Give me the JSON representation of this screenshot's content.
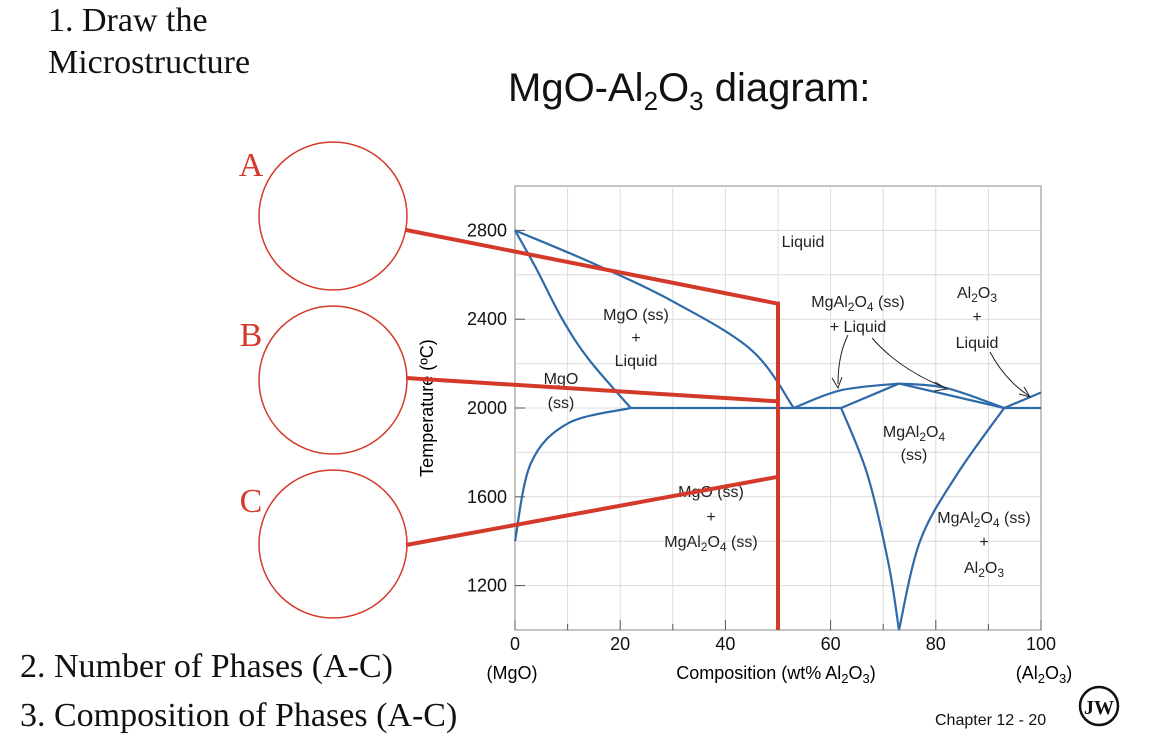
{
  "slide": {
    "heading_line1": "1. Draw the",
    "heading_line2": "Microstructure",
    "title_prefix": "MgO-Al",
    "title_sub1": "2",
    "title_mid": "O",
    "title_sub2": "3",
    "title_suffix": " diagram:",
    "question2": "2. Number of Phases (A-C)",
    "question3": "3. Composition of Phases (A-C)",
    "footer": "Chapter 12 - 20",
    "logo_text": "JW"
  },
  "circles": [
    {
      "label": "A"
    },
    {
      "label": "B"
    },
    {
      "label": "C"
    }
  ],
  "chart_data": {
    "type": "phase-diagram",
    "title": "MgO-Al2O3 diagram:",
    "xlabel": "Composition (wt% Al2O3)",
    "ylabel": "Temperature (ºC)",
    "xlim": [
      0,
      100
    ],
    "ylim": [
      1000,
      3000
    ],
    "x_ticks": [
      "0",
      "20",
      "40",
      "60",
      "80",
      "100"
    ],
    "y_ticks": [
      "1200",
      "1600",
      "2000",
      "2400",
      "2800"
    ],
    "x_end_labels": {
      "left": "(MgO)",
      "right": "(Al2O3)"
    },
    "grid": true,
    "regions": [
      {
        "label": "Liquid"
      },
      {
        "label": "MgO (ss) + Liquid"
      },
      {
        "label": "MgO (ss)"
      },
      {
        "label": "MgO (ss) + MgAl2O4 (ss)"
      },
      {
        "label": "MgAl2O4 (ss) + Liquid"
      },
      {
        "label": "MgAl2O4 (ss)"
      },
      {
        "label": "Al2O3 + Liquid"
      },
      {
        "label": "MgAl2O4 (ss) + Al2O3"
      }
    ],
    "composition_line_wt_pct": 50,
    "points": [
      {
        "label": "A",
        "temperature": 2470
      },
      {
        "label": "B",
        "temperature": 2030
      },
      {
        "label": "C",
        "temperature": 1690
      }
    ],
    "curves": [
      {
        "name": "liquidus-mgo",
        "points": [
          [
            0,
            2800
          ],
          [
            15,
            2650
          ],
          [
            30,
            2480
          ],
          [
            45,
            2260
          ],
          [
            53,
            2000
          ]
        ]
      },
      {
        "name": "solidus-mgo",
        "points": [
          [
            0,
            2800
          ],
          [
            4,
            2630
          ],
          [
            9,
            2400
          ],
          [
            14,
            2220
          ],
          [
            22,
            2000
          ]
        ]
      },
      {
        "name": "eutectic-1",
        "points": [
          [
            22,
            2000
          ],
          [
            62,
            2000
          ]
        ]
      },
      {
        "name": "solvus-mgo",
        "points": [
          [
            22,
            2000
          ],
          [
            10,
            1930
          ],
          [
            3,
            1750
          ],
          [
            0,
            1400
          ]
        ]
      },
      {
        "name": "liquidus-spinel-left",
        "points": [
          [
            53,
            2000
          ],
          [
            62,
            2080
          ],
          [
            73,
            2110
          ]
        ]
      },
      {
        "name": "solidus-spinel-left",
        "points": [
          [
            62,
            2000
          ],
          [
            73,
            2110
          ]
        ]
      },
      {
        "name": "liquidus-spinel-right",
        "points": [
          [
            73,
            2110
          ],
          [
            82,
            2090
          ],
          [
            93,
            2000
          ]
        ]
      },
      {
        "name": "solidus-spinel-right",
        "points": [
          [
            73,
            2110
          ],
          [
            93,
            2000
          ]
        ]
      },
      {
        "name": "eutectic-2",
        "points": [
          [
            93,
            2000
          ],
          [
            100,
            2000
          ]
        ]
      },
      {
        "name": "liquidus-al2o3",
        "points": [
          [
            93,
            2000
          ],
          [
            100,
            2070
          ]
        ]
      },
      {
        "name": "solvus-spinel-left",
        "points": [
          [
            62,
            2000
          ],
          [
            67,
            1700
          ],
          [
            71,
            1300
          ],
          [
            73,
            1000
          ]
        ]
      },
      {
        "name": "solvus-spinel-right",
        "points": [
          [
            93,
            2000
          ],
          [
            84,
            1700
          ],
          [
            77,
            1400
          ],
          [
            73,
            1000
          ]
        ]
      }
    ]
  }
}
